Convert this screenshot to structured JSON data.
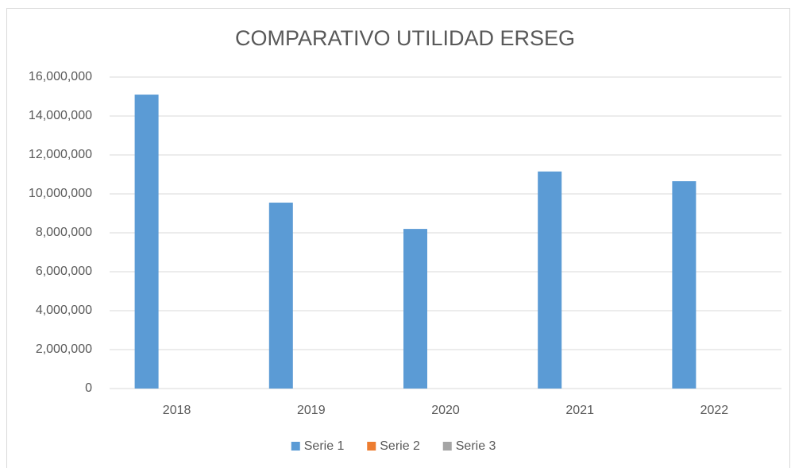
{
  "chart_data": {
    "type": "bar",
    "title": "COMPARATIVO UTILIDAD ERSEG",
    "categories": [
      "2018",
      "2019",
      "2020",
      "2021",
      "2022"
    ],
    "series": [
      {
        "name": "Serie 1",
        "color": "#5b9bd5",
        "values": [
          15100000,
          9550000,
          8200000,
          11150000,
          10650000
        ]
      },
      {
        "name": "Serie 2",
        "color": "#ed7d31",
        "values": [
          0,
          0,
          0,
          0,
          0
        ]
      },
      {
        "name": "Serie 3",
        "color": "#a5a5a5",
        "values": [
          0,
          0,
          0,
          0,
          0
        ]
      }
    ],
    "ylim": [
      0,
      16000000
    ],
    "yticks": [
      0,
      {
        "value": 2000000,
        "label": "2,000,000"
      },
      {
        "value": 4000000,
        "label": "4,000,000"
      },
      {
        "value": 6000000,
        "label": "6,000,000"
      },
      {
        "value": 8000000,
        "label": "8,000,000"
      },
      {
        "value": 10000000,
        "label": "10,000,000"
      },
      {
        "value": 12000000,
        "label": "12,000,000"
      },
      {
        "value": 14000000,
        "label": "14,000,000"
      },
      {
        "value": 16000000,
        "label": "16,000,000"
      }
    ],
    "grid": true,
    "legend": "bottom"
  }
}
